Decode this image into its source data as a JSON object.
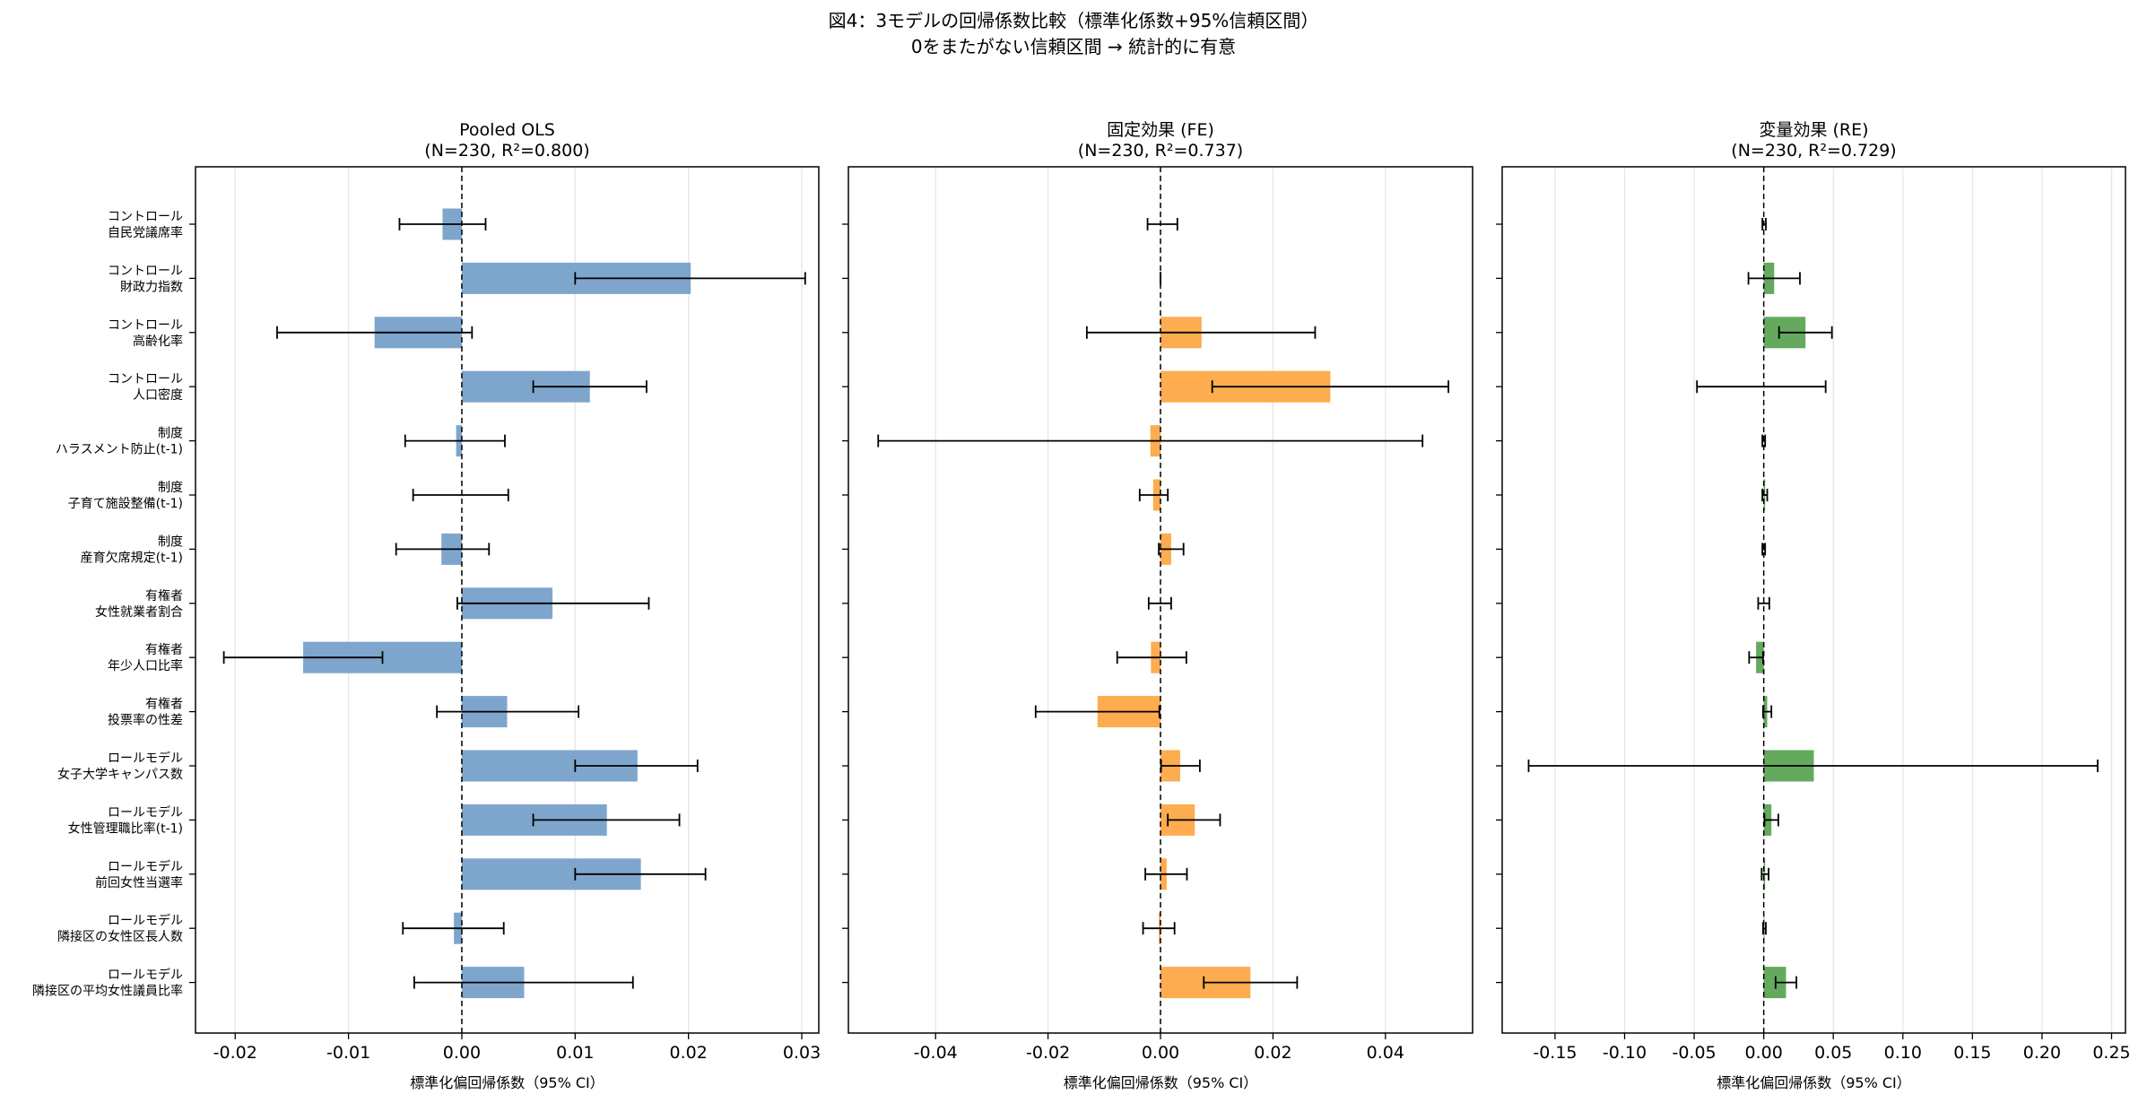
{
  "figure": {
    "title_line1": "図4：3モデルの回帰係数比較（標準化係数+95%信頼区間）",
    "title_line2": "0をまたがない信頼区間 → 統計的に有意"
  },
  "chart_data": [
    {
      "type": "bar",
      "orientation": "horizontal",
      "title": "Pooled OLS",
      "subtitle": "(N=230, R²=0.800)",
      "xlabel": "標準化偏回帰係数（95% CI）",
      "color": "#7ea6cc",
      "xlim": [
        -0.0235,
        0.0315
      ],
      "xticks": [
        -0.02,
        -0.01,
        0.0,
        0.01,
        0.02,
        0.03
      ],
      "xtick_labels": [
        "-0.02",
        "-0.01",
        "0.00",
        "0.01",
        "0.02",
        "0.03"
      ],
      "grid": "x",
      "categories": [
        [
          "コントロール",
          "自民党議席率"
        ],
        [
          "コントロール",
          "財政力指数"
        ],
        [
          "コントロール",
          "高齢化率"
        ],
        [
          "コントロール",
          "人口密度"
        ],
        [
          "制度",
          "ハラスメント防止(t-1)"
        ],
        [
          "制度",
          "子育て施設整備(t-1)"
        ],
        [
          "制度",
          "産育欠席規定(t-1)"
        ],
        [
          "有権者",
          "女性就業者割合"
        ],
        [
          "有権者",
          "年少人口比率"
        ],
        [
          "有権者",
          "投票率の性差"
        ],
        [
          "ロールモデル",
          "女子大学キャンパス数"
        ],
        [
          "ロールモデル",
          "女性管理職比率(t-1)"
        ],
        [
          "ロールモデル",
          "前回女性当選率"
        ],
        [
          "ロールモデル",
          "隣接区の女性区長人数"
        ],
        [
          "ロールモデル",
          "隣接区の平均女性議員比率"
        ]
      ],
      "values": [
        -0.0017,
        0.0202,
        -0.0077,
        0.0113,
        -0.0005,
        0.0,
        -0.0018,
        0.008,
        -0.014,
        0.004,
        0.0155,
        0.0128,
        0.0158,
        -0.0007,
        0.0055
      ],
      "ci_low": [
        -0.0055,
        0.01,
        -0.0163,
        0.0063,
        -0.005,
        -0.0043,
        -0.0058,
        -0.0004,
        -0.021,
        -0.0022,
        0.01,
        0.0063,
        0.01,
        -0.0052,
        -0.0042
      ],
      "ci_high": [
        0.0021,
        0.0303,
        0.0009,
        0.0163,
        0.0038,
        0.0041,
        0.0024,
        0.0165,
        -0.007,
        0.0103,
        0.0208,
        0.0192,
        0.0215,
        0.0037,
        0.0151
      ]
    },
    {
      "type": "bar",
      "orientation": "horizontal",
      "title": "固定効果 (FE)",
      "subtitle": "(N=230, R²=0.737)",
      "xlabel": "標準化偏回帰係数（95% CI）",
      "color": "#fdac4f",
      "xlim": [
        -0.0555,
        0.0555
      ],
      "xticks": [
        -0.04,
        -0.02,
        0.0,
        0.02,
        0.04
      ],
      "xtick_labels": [
        "-0.04",
        "-0.02",
        "0.00",
        "0.02",
        "0.04"
      ],
      "grid": "x",
      "values": [
        0.0,
        0.0,
        0.0073,
        0.0302,
        -0.0018,
        -0.0013,
        0.0019,
        0.0,
        -0.0017,
        -0.0112,
        0.0035,
        0.0061,
        0.0011,
        -0.0003,
        0.016
      ],
      "ci_low": [
        -0.0023,
        0.0,
        -0.0131,
        0.0092,
        -0.0502,
        -0.0037,
        -0.0003,
        -0.0021,
        -0.0077,
        -0.0222,
        0.0001,
        0.0013,
        -0.0027,
        -0.0031,
        0.0077
      ],
      "ci_high": [
        0.003,
        0.0,
        0.0275,
        0.0512,
        0.0466,
        0.0013,
        0.0041,
        0.0019,
        0.0046,
        -0.0002,
        0.007,
        0.0106,
        0.0047,
        0.0025,
        0.0243
      ]
    },
    {
      "type": "bar",
      "orientation": "horizontal",
      "title": "変量効果 (RE)",
      "subtitle": "(N=230, R²=0.729)",
      "xlabel": "標準化偏回帰係数（95% CI）",
      "color": "#64a95e",
      "xlim": [
        -0.188,
        0.26
      ],
      "xticks": [
        -0.15,
        -0.1,
        -0.05,
        0.0,
        0.05,
        0.1,
        0.15,
        0.2,
        0.25
      ],
      "xtick_labels": [
        "-0.15",
        "-0.10",
        "-0.05",
        "0.00",
        "0.05",
        "0.10",
        "0.15",
        "0.20",
        "0.25"
      ],
      "grid": "x",
      "values": [
        0.0,
        0.0075,
        0.03,
        0.0,
        0.0,
        0.001,
        0.0,
        0.0,
        -0.0055,
        0.0025,
        0.036,
        0.0055,
        0.001,
        0.0005,
        0.016
      ],
      "ci_low": [
        -0.001,
        -0.011,
        0.011,
        -0.048,
        -0.001,
        -0.001,
        -0.001,
        -0.004,
        -0.0105,
        -0.0005,
        -0.169,
        0.0005,
        -0.0015,
        -0.0005,
        0.0085
      ],
      "ci_high": [
        0.0015,
        0.026,
        0.049,
        0.0445,
        0.001,
        0.0025,
        0.001,
        0.004,
        -0.0005,
        0.0055,
        0.24,
        0.0105,
        0.0035,
        0.0015,
        0.0235
      ]
    }
  ]
}
